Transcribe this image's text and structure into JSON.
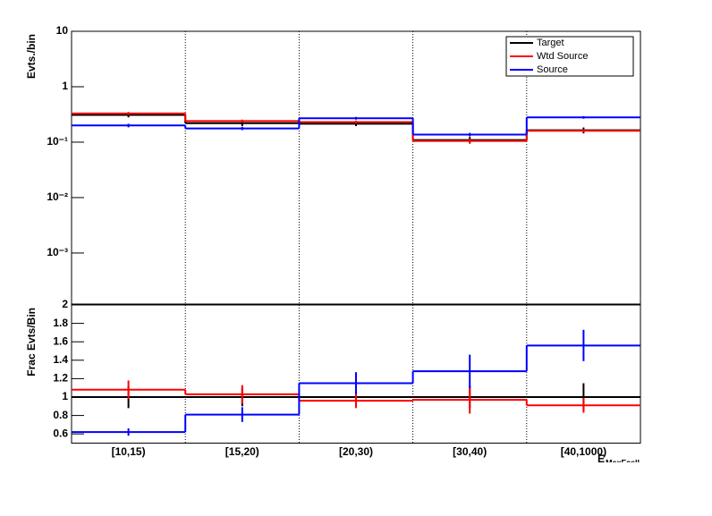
{
  "chart_data": [
    {
      "type": "step",
      "y_label": "Evts./bin",
      "log_y": true,
      "ylim": [
        0.00012,
        10
      ],
      "yticks": [
        {
          "value": 10,
          "label": "10"
        },
        {
          "value": 1,
          "label": "1"
        },
        {
          "value": 0.1,
          "label": "10⁻¹"
        },
        {
          "value": 0.01,
          "label": "10⁻²"
        },
        {
          "value": 0.001,
          "label": "10⁻³"
        }
      ],
      "legend": "top-right",
      "series": [
        {
          "name": "Target",
          "color": "#000000",
          "values": [
            0.31,
            0.22,
            0.215,
            0.109,
            0.164
          ],
          "errors": [
            0.03,
            0.025,
            0.02,
            0.015,
            0.02
          ]
        },
        {
          "name": "Wtd Source",
          "color": "#ff0000",
          "values": [
            0.33,
            0.24,
            0.23,
            0.105,
            0.16
          ],
          "errors": [
            0.02,
            0.015,
            0.015,
            0.01,
            0.01
          ]
        },
        {
          "name": "Source",
          "color": "#0000ff",
          "values": [
            0.2,
            0.177,
            0.27,
            0.137,
            0.28
          ],
          "errors": [
            0.015,
            0.012,
            0.015,
            0.01,
            0.015
          ]
        }
      ]
    },
    {
      "type": "step",
      "y_label": "Frac Evts/Bin",
      "log_y": false,
      "categories": [
        "[10,15)",
        "[15,20)",
        "[20,30)",
        "[30,40)",
        "[40,1000)"
      ],
      "x_label": "E",
      "x_label_sub": "MaxFcell",
      "ylim": [
        0.5,
        2.0
      ],
      "yticks": [
        0.6,
        0.8,
        1,
        1.2,
        1.4,
        1.6,
        1.8,
        2
      ],
      "series": [
        {
          "name": "Target",
          "color": "#000000",
          "values": [
            1,
            1,
            1,
            1,
            1
          ],
          "errors": [
            0.12,
            0.1,
            0.1,
            0.12,
            0.15
          ]
        },
        {
          "name": "Wtd Source",
          "color": "#ff0000",
          "values": [
            1.08,
            1.03,
            0.96,
            0.97,
            0.91
          ],
          "errors": [
            0.1,
            0.1,
            0.08,
            0.15,
            0.08
          ]
        },
        {
          "name": "Source",
          "color": "#0000ff",
          "values": [
            0.62,
            0.81,
            1.15,
            1.28,
            1.56
          ],
          "errors": [
            0.04,
            0.08,
            0.12,
            0.18,
            0.17
          ]
        }
      ]
    }
  ]
}
